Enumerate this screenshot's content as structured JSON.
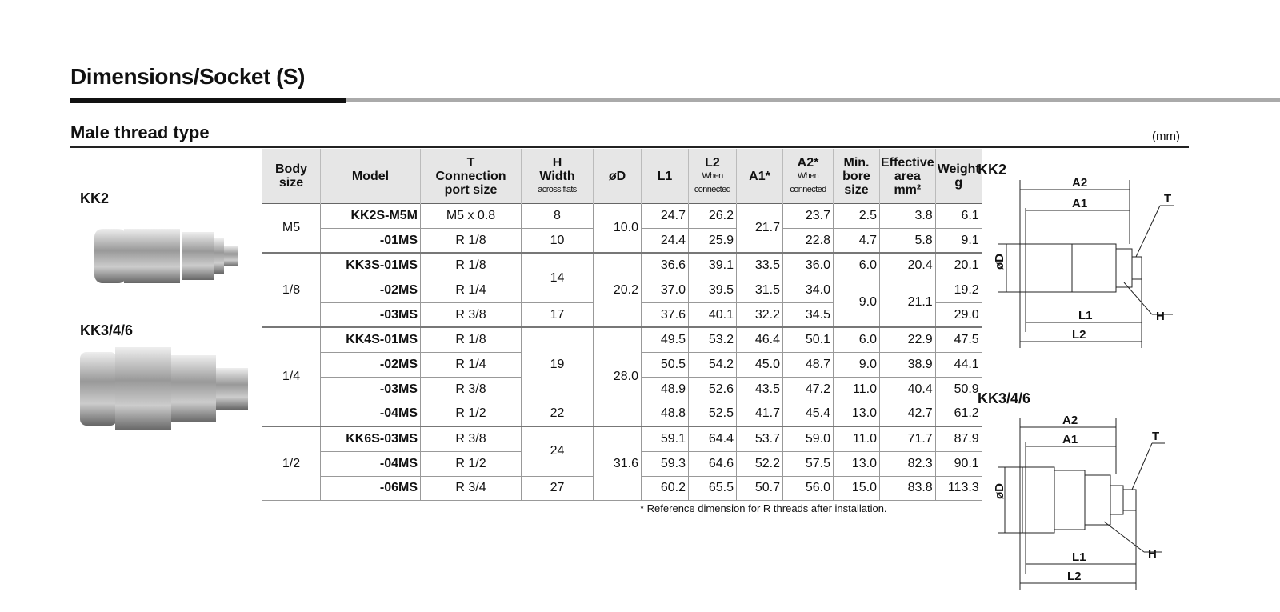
{
  "title": "Dimensions/Socket (S)",
  "subtitle": "Male thread type",
  "unit": "(mm)",
  "photos": {
    "kk2": "KK2",
    "kk346": "KK3/4/6"
  },
  "table": {
    "headers": [
      [
        "Body",
        "size"
      ],
      [
        "Model"
      ],
      [
        "T",
        "Connection",
        "port size"
      ],
      [
        "H",
        "Width",
        "across flats"
      ],
      [
        "øD"
      ],
      [
        "L1"
      ],
      [
        "L2",
        "When",
        "connected"
      ],
      [
        "A1*"
      ],
      [
        "A2*",
        "When",
        "connected"
      ],
      [
        "Min.",
        "bore",
        "size"
      ],
      [
        "Effective",
        "area",
        "mm²"
      ],
      [
        "Weight",
        "g"
      ]
    ],
    "rows": [
      [
        {
          "v": "M5",
          "span": 2
        },
        "KK2S-M5M",
        "M5 x 0.8",
        "8",
        {
          "v": "10.0",
          "span": 2
        },
        "24.7",
        "26.2",
        {
          "v": "21.7",
          "span": 2
        },
        "23.7",
        "2.5",
        "3.8",
        "6.1"
      ],
      [
        "-01MS",
        "R 1/8",
        "10",
        "24.4",
        "25.9",
        "22.8",
        "4.7",
        "5.8",
        "9.1"
      ],
      [
        {
          "v": "1/8",
          "span": 3
        },
        "KK3S-01MS",
        "R 1/8",
        {
          "v": "14",
          "span": 2
        },
        {
          "v": "20.2",
          "span": 3
        },
        "36.6",
        "39.1",
        "33.5",
        "36.0",
        "6.0",
        "20.4",
        "20.1"
      ],
      [
        "-02MS",
        "R 1/4",
        "37.0",
        "39.5",
        "31.5",
        "34.0",
        {
          "v": "9.0",
          "span": 2
        },
        {
          "v": "21.1",
          "span": 2
        },
        "19.2"
      ],
      [
        "-03MS",
        "R 3/8",
        "17",
        "37.6",
        "40.1",
        "32.2",
        "34.5",
        "29.0"
      ],
      [
        {
          "v": "1/4",
          "span": 4
        },
        "KK4S-01MS",
        "R 1/8",
        {
          "v": "19",
          "span": 3
        },
        {
          "v": "28.0",
          "span": 4
        },
        "49.5",
        "53.2",
        "46.4",
        "50.1",
        "6.0",
        "22.9",
        "47.5"
      ],
      [
        "-02MS",
        "R 1/4",
        "50.5",
        "54.2",
        "45.0",
        "48.7",
        "9.0",
        "38.9",
        "44.1"
      ],
      [
        "-03MS",
        "R 3/8",
        "48.9",
        "52.6",
        "43.5",
        "47.2",
        "11.0",
        "40.4",
        "50.9"
      ],
      [
        "-04MS",
        "R 1/2",
        "22",
        "48.8",
        "52.5",
        "41.7",
        "45.4",
        "13.0",
        "42.7",
        "61.2"
      ],
      [
        {
          "v": "1/2",
          "span": 3
        },
        "KK6S-03MS",
        "R 3/8",
        {
          "v": "24",
          "span": 2
        },
        {
          "v": "31.6",
          "span": 3
        },
        "59.1",
        "64.4",
        "53.7",
        "59.0",
        "11.0",
        "71.7",
        "87.9"
      ],
      [
        "-04MS",
        "R 1/2",
        "59.3",
        "64.6",
        "52.2",
        "57.5",
        "13.0",
        "82.3",
        "90.1"
      ],
      [
        "-06MS",
        "R 3/4",
        "27",
        "60.2",
        "65.5",
        "50.7",
        "56.0",
        "15.0",
        "83.8",
        "113.3"
      ]
    ]
  },
  "note": "* Reference dimension for R threads after installation.",
  "diagrams": {
    "kk2": {
      "title": "KK2"
    },
    "kk346": {
      "title": "KK3/4/6"
    },
    "labels": {
      "a2": "A2",
      "a1": "A1",
      "t": "T",
      "d": "øD",
      "l1": "L1",
      "l2": "L2",
      "h": "H"
    }
  }
}
